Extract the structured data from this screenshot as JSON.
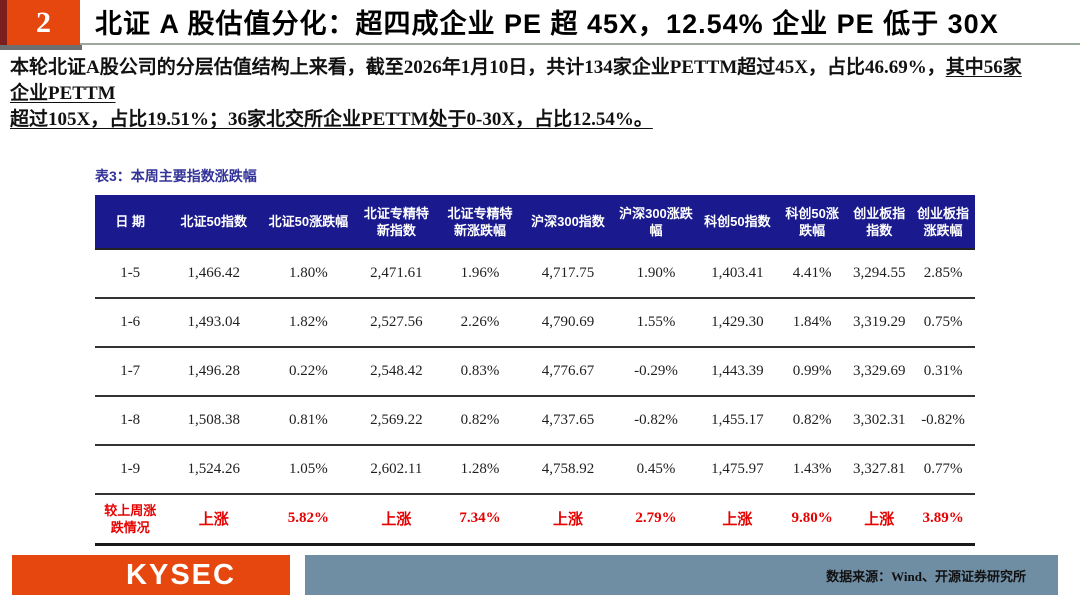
{
  "page": {
    "slide_number": "2",
    "title": "北证 A 股估值分化：超四成企业 PE 超 45X，12.54% 企业 PE 低于 30X"
  },
  "body": {
    "line_normal": "本轮北证A股公司的分层估值结构上来看，截至2026年1月10日，共计134家企业PETTM超过45X，占比46.69%，",
    "line_underline_1": "其中56家企业PETTM",
    "line_underline_2": "超过105X，占比19.51%；36家北交所企业PETTM处于0-30X，占比12.54%。"
  },
  "table": {
    "caption": "表3：本周主要指数涨跌幅",
    "columns": [
      "日 期",
      "北证50指数",
      "北证50涨跌幅",
      "北证专精特新指数",
      "北证专精特新涨跌幅",
      "沪深300指数",
      "沪深300涨跌幅",
      "科创50指数",
      "科创50涨跌幅",
      "创业板指指数",
      "创业板指涨跌幅"
    ],
    "rows": [
      [
        "1-5",
        "1,466.42",
        "1.80%",
        "2,471.61",
        "1.96%",
        "4,717.75",
        "1.90%",
        "1,403.41",
        "4.41%",
        "3,294.55",
        "2.85%"
      ],
      [
        "1-6",
        "1,493.04",
        "1.82%",
        "2,527.56",
        "2.26%",
        "4,790.69",
        "1.55%",
        "1,429.30",
        "1.84%",
        "3,319.29",
        "0.75%"
      ],
      [
        "1-7",
        "1,496.28",
        "0.22%",
        "2,548.42",
        "0.83%",
        "4,776.67",
        "-0.29%",
        "1,443.39",
        "0.99%",
        "3,329.69",
        "0.31%"
      ],
      [
        "1-8",
        "1,508.38",
        "0.81%",
        "2,569.22",
        "0.82%",
        "4,737.65",
        "-0.82%",
        "1,455.17",
        "0.82%",
        "3,302.31",
        "-0.82%"
      ],
      [
        "1-9",
        "1,524.26",
        "1.05%",
        "2,602.11",
        "1.28%",
        "4,758.92",
        "0.45%",
        "1,475.97",
        "1.43%",
        "3,327.81",
        "0.77%"
      ]
    ],
    "summary_row": [
      "较上周涨跌情况",
      "上涨",
      "5.82%",
      "上涨",
      "7.34%",
      "上涨",
      "2.79%",
      "上涨",
      "9.80%",
      "上涨",
      "3.89%"
    ]
  },
  "footer": {
    "logo_text": "KYSEC",
    "source_text": "数据来源：Wind、开源证券研究所"
  },
  "colors": {
    "accent_orange": "#E5470E",
    "maroon_strip": "#7A1E1E",
    "table_header_navy": "#1A1A8E",
    "summary_red": "#E60000",
    "footer_bar_blue_gray": "#6F8DA3",
    "caption_indigo": "#333399"
  }
}
